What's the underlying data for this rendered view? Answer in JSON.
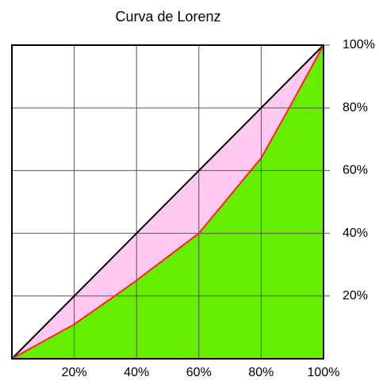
{
  "chart_data": {
    "type": "line",
    "title": "Curva de Lorenz",
    "x": [
      0,
      20,
      33,
      40,
      60,
      80,
      89,
      100
    ],
    "series": [
      {
        "color": "#000000",
        "fill": "#ffc8f0",
        "values": [
          0,
          20,
          33,
          40,
          60,
          80,
          89,
          100
        ]
      },
      {
        "color": "#ff2020",
        "fill": "#66ee00",
        "values": [
          0,
          11,
          20,
          25,
          40,
          64,
          80,
          100
        ]
      }
    ],
    "xlim": [
      0,
      100
    ],
    "ylim": [
      0,
      100
    ],
    "xticks": [
      {
        "value": 20,
        "label": "20%"
      },
      {
        "value": 40,
        "label": "40%"
      },
      {
        "value": 60,
        "label": "60%"
      },
      {
        "value": 80,
        "label": "80%"
      },
      {
        "value": 100,
        "label": "100%"
      }
    ],
    "yticks": [
      {
        "value": 20,
        "label": "20%"
      },
      {
        "value": 40,
        "label": "40%"
      },
      {
        "value": 60,
        "label": "60%"
      },
      {
        "value": 80,
        "label": "80%"
      },
      {
        "value": 100,
        "label": "100%"
      }
    ],
    "grid": true
  }
}
